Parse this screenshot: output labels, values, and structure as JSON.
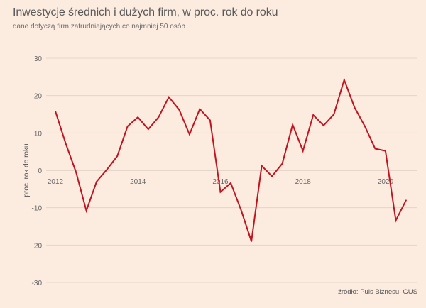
{
  "title": "Inwestycje średnich i dużych firm, w proc. rok do roku",
  "subtitle": "dane dotyczą firm zatrudniających co najmniej 50 osób",
  "source": "źródło: Puls Biznesu, GUS",
  "colors": {
    "line": "#c0141e",
    "grid": "#e6d5c9",
    "zero": "#d8c8bc",
    "background": "#fcebdf"
  },
  "chart_data": {
    "type": "line",
    "title": "Inwestycje średnich i dużych firm, w proc. rok do roku",
    "subtitle": "dane dotyczą firm zatrudniających co najmniej 50 osób",
    "xlabel": "",
    "ylabel": "proc. rok do roku",
    "ylim": [
      -30,
      30
    ],
    "xlim": [
      2012,
      2020.5
    ],
    "yticks": [
      -30,
      -20,
      -10,
      0,
      10,
      20,
      30
    ],
    "xticks": [
      2012,
      2014,
      2016,
      2018,
      2020
    ],
    "grid": true,
    "series": [
      {
        "x": [
          2012,
          2012.25,
          2012.5,
          2012.75,
          2013,
          2013.25,
          2013.5,
          2013.75,
          2014,
          2014.25,
          2014.5,
          2014.75,
          2015,
          2015.25,
          2015.5,
          2015.75,
          2016,
          2016.25,
          2016.5,
          2016.75,
          2017,
          2017.25,
          2017.5,
          2017.75,
          2018,
          2018.25,
          2018.5,
          2018.75,
          2019,
          2019.25,
          2019.5,
          2019.75,
          2020,
          2020.25,
          2020.5
        ],
        "values": [
          15.8,
          7.2,
          -0.5,
          -10.8,
          -3.0,
          0.2,
          3.8,
          11.8,
          14.2,
          11.0,
          14.2,
          19.6,
          16.2,
          9.6,
          16.4,
          13.4,
          -5.8,
          -3.4,
          -10.6,
          -19.0,
          1.2,
          -1.6,
          1.8,
          12.2,
          5.2,
          14.8,
          12.0,
          15.0,
          24.2,
          16.8,
          11.8,
          5.8,
          5.2,
          -13.4,
          -8.0
        ]
      }
    ]
  }
}
